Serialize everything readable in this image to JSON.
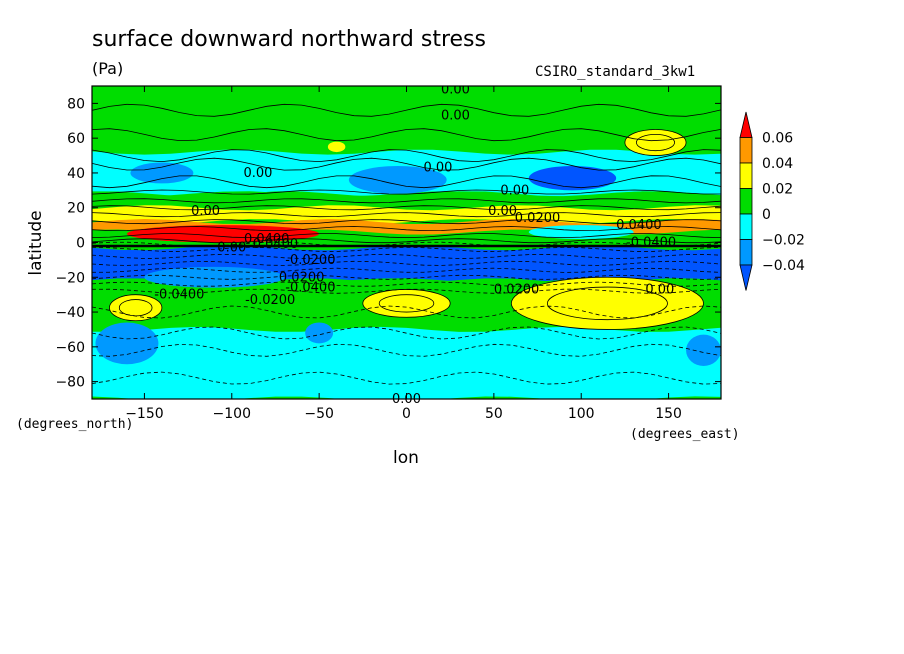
{
  "chart_data": {
    "type": "contour",
    "title": "surface downward northward stress",
    "units": "(Pa)",
    "source": "CSIRO_standard_3kw1",
    "xlabel": "lon",
    "ylabel": "latitude",
    "x_units": "(degrees_east)",
    "y_units": "(degrees_north)",
    "xlim": [
      -180,
      180
    ],
    "ylim": [
      -90,
      90
    ],
    "x_ticks": [
      -150,
      -100,
      -50,
      0,
      50,
      100,
      150
    ],
    "x_tick_labels": [
      "-150",
      "-100",
      "-50",
      "0",
      "50",
      "100",
      "150"
    ],
    "y_ticks": [
      80,
      60,
      40,
      20,
      0,
      -20,
      -40,
      -60,
      -80
    ],
    "y_tick_labels": [
      "80",
      "60",
      "40",
      "20",
      "0",
      "-20",
      "-40",
      "-60",
      "-80"
    ],
    "colorbar": {
      "levels": [
        0.06,
        0.04,
        0.02,
        0,
        -0.02,
        -0.04
      ],
      "labels": [
        "0.06",
        "0.04",
        "0.02",
        "0",
        "−0.02",
        "−0.04"
      ],
      "colors": [
        "#ff0000",
        "#ff9900",
        "#ffff00",
        "#00dd00",
        "#00ffff",
        "#0099ff",
        "#0055ff"
      ]
    },
    "colors": {
      "dark_red": "#ff0000",
      "orange": "#ff9900",
      "yellow": "#ffff00",
      "green": "#00dd00",
      "cyan": "#00ffff",
      "blue": "#0099ff",
      "deep_blue": "#0055ff"
    },
    "regions": [
      {
        "name": "north-polar-green",
        "level": 0.01,
        "lon": [
          -180,
          180
        ],
        "lat": [
          52,
          90
        ]
      },
      {
        "name": "nh-midlat-cyan",
        "level": -0.01,
        "lon": [
          -180,
          180
        ],
        "lat": [
          28,
          52
        ]
      },
      {
        "name": "nh-subtrop-green",
        "level": 0.01,
        "lon": [
          -180,
          180
        ],
        "lat": [
          20,
          28
        ]
      },
      {
        "name": "nh-yellow",
        "level": 0.03,
        "lon": [
          -180,
          180
        ],
        "lat": [
          12,
          20
        ]
      },
      {
        "name": "nh-orange",
        "level": 0.05,
        "lon": [
          -180,
          180
        ],
        "lat": [
          6,
          12
        ]
      },
      {
        "name": "equator-red",
        "level": 0.07,
        "lon": [
          -160,
          -50
        ],
        "lat": [
          0,
          10
        ]
      },
      {
        "name": "sh-deep-blue",
        "level": -0.05,
        "lon": [
          -180,
          180
        ],
        "lat": [
          -22,
          -3
        ]
      },
      {
        "name": "sh-green",
        "level": 0.01,
        "lon": [
          -180,
          180
        ],
        "lat": [
          -50,
          -22
        ]
      },
      {
        "name": "sh-subpolar-cyan",
        "level": -0.01,
        "lon": [
          -180,
          180
        ],
        "lat": [
          -90,
          -50
        ]
      },
      {
        "name": "yellow-cell-pacific",
        "level": 0.03,
        "lon": [
          -170,
          -140
        ],
        "lat": [
          -45,
          -30
        ]
      },
      {
        "name": "yellow-cell-atlantic",
        "level": 0.03,
        "lon": [
          -25,
          25
        ],
        "lat": [
          -43,
          -27
        ]
      },
      {
        "name": "yellow-cell-indian",
        "level": 0.03,
        "lon": [
          60,
          170
        ],
        "lat": [
          -50,
          -20
        ]
      },
      {
        "name": "yellow-cell-northpac",
        "level": 0.03,
        "lon": [
          125,
          160
        ],
        "lat": [
          50,
          65
        ]
      }
    ],
    "contour_labels": [
      "0.00",
      "0.00",
      "0.00",
      "0.00",
      "0.00",
      "0.00",
      "0.00",
      "0.00",
      "0.0400",
      "0.0400",
      "-0.0200",
      "0.0200",
      "-0.0400",
      "-0.0400",
      "-0.0200",
      "0.0200",
      "0.0400",
      "-0.0400",
      "0.0200",
      "0.00"
    ]
  }
}
